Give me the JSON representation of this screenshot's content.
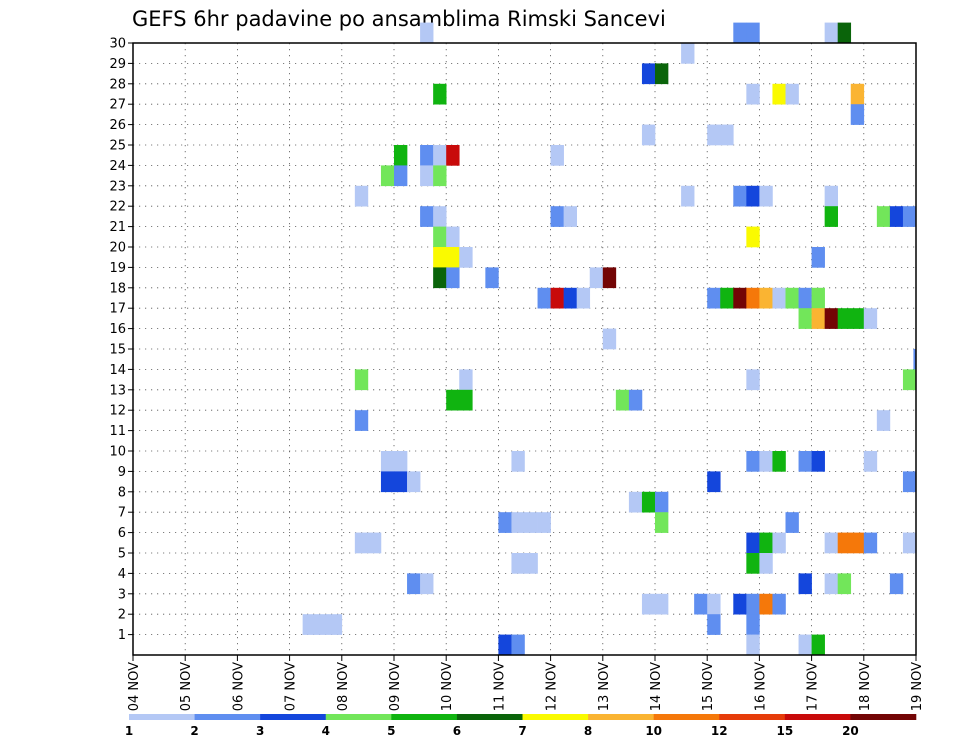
{
  "chart_data": {
    "type": "heatmap",
    "title": "GEFS 6hr padavine po ansamblima Rimski Sancevi",
    "xlabel": "",
    "ylabel": "",
    "x_tick_labels": [
      "04 NOV",
      "05 NOV",
      "06 NOV",
      "07 NOV",
      "08 NOV",
      "09 NOV",
      "10 NOV",
      "11 NOV",
      "12 NOV",
      "13 NOV",
      "14 NOV",
      "15 NOV",
      "16 NOV",
      "17 NOV",
      "18 NOV",
      "19 NOV"
    ],
    "y_tick_labels": [
      "1",
      "2",
      "3",
      "4",
      "5",
      "6",
      "7",
      "8",
      "9",
      "10",
      "11",
      "12",
      "13",
      "14",
      "15",
      "16",
      "17",
      "18",
      "19",
      "20",
      "21",
      "22",
      "23",
      "24",
      "25",
      "26",
      "27",
      "28",
      "29",
      "30"
    ],
    "x_range_days": [
      0,
      15
    ],
    "y_range": [
      0,
      30
    ],
    "step_days": 0.25,
    "grid": true,
    "legend_position": "bottom",
    "levels": [
      {
        "label": "1",
        "color": "#b4c8f5"
      },
      {
        "label": "2",
        "color": "#5f8ef0"
      },
      {
        "label": "3",
        "color": "#1446dc"
      },
      {
        "label": "4",
        "color": "#72e65a"
      },
      {
        "label": "5",
        "color": "#10b410"
      },
      {
        "label": "6",
        "color": "#0a640a"
      },
      {
        "label": "7",
        "color": "#fafa00"
      },
      {
        "label": "8",
        "color": "#fab432"
      },
      {
        "label": "10",
        "color": "#f5780a"
      },
      {
        "label": "12",
        "color": "#e63c0a"
      },
      {
        "label": "15",
        "color": "#c80a0a"
      },
      {
        "label": "20",
        "color": "#730505"
      }
    ],
    "cells": [
      [
        5.5,
        30,
        0
      ],
      [
        11.5,
        30,
        1
      ],
      [
        11.75,
        30,
        1
      ],
      [
        13.25,
        30,
        0
      ],
      [
        13.5,
        30,
        5
      ],
      [
        10.5,
        29,
        0
      ],
      [
        9.75,
        28,
        2
      ],
      [
        10.0,
        28,
        5
      ],
      [
        5.75,
        27,
        4
      ],
      [
        11.75,
        27,
        0
      ],
      [
        12.25,
        27,
        6
      ],
      [
        12.5,
        27,
        0
      ],
      [
        13.75,
        27,
        7
      ],
      [
        13.75,
        26,
        1
      ],
      [
        9.75,
        25,
        0
      ],
      [
        11.0,
        25,
        0
      ],
      [
        11.25,
        25,
        0
      ],
      [
        5.0,
        24,
        4
      ],
      [
        5.5,
        24,
        1
      ],
      [
        5.75,
        24,
        0
      ],
      [
        6.0,
        24,
        10
      ],
      [
        8.0,
        24,
        0
      ],
      [
        4.75,
        23,
        3
      ],
      [
        5.0,
        23,
        1
      ],
      [
        5.5,
        23,
        0
      ],
      [
        5.75,
        23,
        3
      ],
      [
        4.25,
        22,
        0
      ],
      [
        10.5,
        22,
        0
      ],
      [
        11.5,
        22,
        1
      ],
      [
        11.75,
        22,
        2
      ],
      [
        12.0,
        22,
        0
      ],
      [
        13.25,
        22,
        0
      ],
      [
        5.5,
        21,
        1
      ],
      [
        5.75,
        21,
        0
      ],
      [
        8.0,
        21,
        1
      ],
      [
        8.25,
        21,
        0
      ],
      [
        13.25,
        21,
        4
      ],
      [
        14.25,
        21,
        3
      ],
      [
        14.5,
        21,
        2
      ],
      [
        14.75,
        21,
        1
      ],
      [
        5.75,
        20,
        3
      ],
      [
        6.0,
        20,
        0
      ],
      [
        11.75,
        20,
        6
      ],
      [
        5.75,
        19,
        6
      ],
      [
        6.0,
        19,
        6
      ],
      [
        6.25,
        19,
        0
      ],
      [
        13.0,
        19,
        1
      ],
      [
        5.75,
        18,
        5
      ],
      [
        6.0,
        18,
        1
      ],
      [
        6.75,
        18,
        1
      ],
      [
        8.75,
        18,
        0
      ],
      [
        9.0,
        18,
        11
      ],
      [
        7.75,
        17,
        1
      ],
      [
        8.0,
        17,
        10
      ],
      [
        8.25,
        17,
        2
      ],
      [
        8.5,
        17,
        0
      ],
      [
        11.0,
        17,
        1
      ],
      [
        11.25,
        17,
        4
      ],
      [
        11.5,
        17,
        11
      ],
      [
        11.75,
        17,
        8
      ],
      [
        12.0,
        17,
        7
      ],
      [
        12.25,
        17,
        0
      ],
      [
        12.5,
        17,
        3
      ],
      [
        12.75,
        17,
        1
      ],
      [
        13.0,
        17,
        3
      ],
      [
        12.75,
        16,
        3
      ],
      [
        13.0,
        16,
        7
      ],
      [
        13.25,
        16,
        11
      ],
      [
        13.5,
        16,
        4
      ],
      [
        13.75,
        16,
        4
      ],
      [
        14.0,
        16,
        0
      ],
      [
        9.0,
        15,
        0
      ],
      [
        14.95,
        14,
        1
      ],
      [
        4.25,
        13,
        3
      ],
      [
        6.25,
        13,
        0
      ],
      [
        11.75,
        13,
        0
      ],
      [
        14.75,
        13,
        3
      ],
      [
        6.0,
        12,
        4
      ],
      [
        6.25,
        12,
        4
      ],
      [
        9.25,
        12,
        3
      ],
      [
        9.5,
        12,
        1
      ],
      [
        4.25,
        11,
        1
      ],
      [
        14.25,
        11,
        0
      ],
      [
        4.75,
        9,
        0
      ],
      [
        5.0,
        9,
        0
      ],
      [
        7.25,
        9,
        0
      ],
      [
        11.75,
        9,
        1
      ],
      [
        12.0,
        9,
        0
      ],
      [
        12.25,
        9,
        4
      ],
      [
        12.75,
        9,
        1
      ],
      [
        13.0,
        9,
        2
      ],
      [
        14.0,
        9,
        0
      ],
      [
        4.75,
        8,
        2
      ],
      [
        5.0,
        8,
        2
      ],
      [
        5.25,
        8,
        0
      ],
      [
        11.0,
        8,
        2
      ],
      [
        14.75,
        8,
        1
      ],
      [
        9.5,
        7,
        0
      ],
      [
        9.75,
        7,
        4
      ],
      [
        10.0,
        7,
        1
      ],
      [
        7.0,
        6,
        1
      ],
      [
        7.25,
        6,
        0
      ],
      [
        7.5,
        6,
        0
      ],
      [
        7.75,
        6,
        0
      ],
      [
        10.0,
        6,
        3
      ],
      [
        12.5,
        6,
        1
      ],
      [
        4.25,
        5,
        0
      ],
      [
        4.5,
        5,
        0
      ],
      [
        11.75,
        5,
        2
      ],
      [
        12.0,
        5,
        4
      ],
      [
        12.25,
        5,
        0
      ],
      [
        13.25,
        5,
        0
      ],
      [
        13.5,
        5,
        8
      ],
      [
        13.75,
        5,
        8
      ],
      [
        14.0,
        5,
        1
      ],
      [
        14.75,
        5,
        0
      ],
      [
        7.25,
        4,
        0
      ],
      [
        7.5,
        4,
        0
      ],
      [
        11.75,
        4,
        4
      ],
      [
        12.0,
        4,
        0
      ],
      [
        5.25,
        3,
        1
      ],
      [
        5.5,
        3,
        0
      ],
      [
        12.75,
        3,
        2
      ],
      [
        13.25,
        3,
        0
      ],
      [
        13.5,
        3,
        3
      ],
      [
        14.5,
        3,
        1
      ],
      [
        9.75,
        2,
        0
      ],
      [
        10.0,
        2,
        0
      ],
      [
        10.75,
        2,
        1
      ],
      [
        11.0,
        2,
        0
      ],
      [
        11.5,
        2,
        2
      ],
      [
        11.75,
        2,
        1
      ],
      [
        12.0,
        2,
        8
      ],
      [
        12.25,
        2,
        1
      ],
      [
        3.25,
        1,
        0
      ],
      [
        3.5,
        1,
        0
      ],
      [
        3.75,
        1,
        0
      ],
      [
        11.0,
        1,
        1
      ],
      [
        11.75,
        1,
        1
      ],
      [
        7.0,
        0,
        2
      ],
      [
        7.25,
        0,
        1
      ],
      [
        11.75,
        0,
        0
      ],
      [
        12.75,
        0,
        0
      ],
      [
        13.0,
        0,
        4
      ]
    ]
  }
}
